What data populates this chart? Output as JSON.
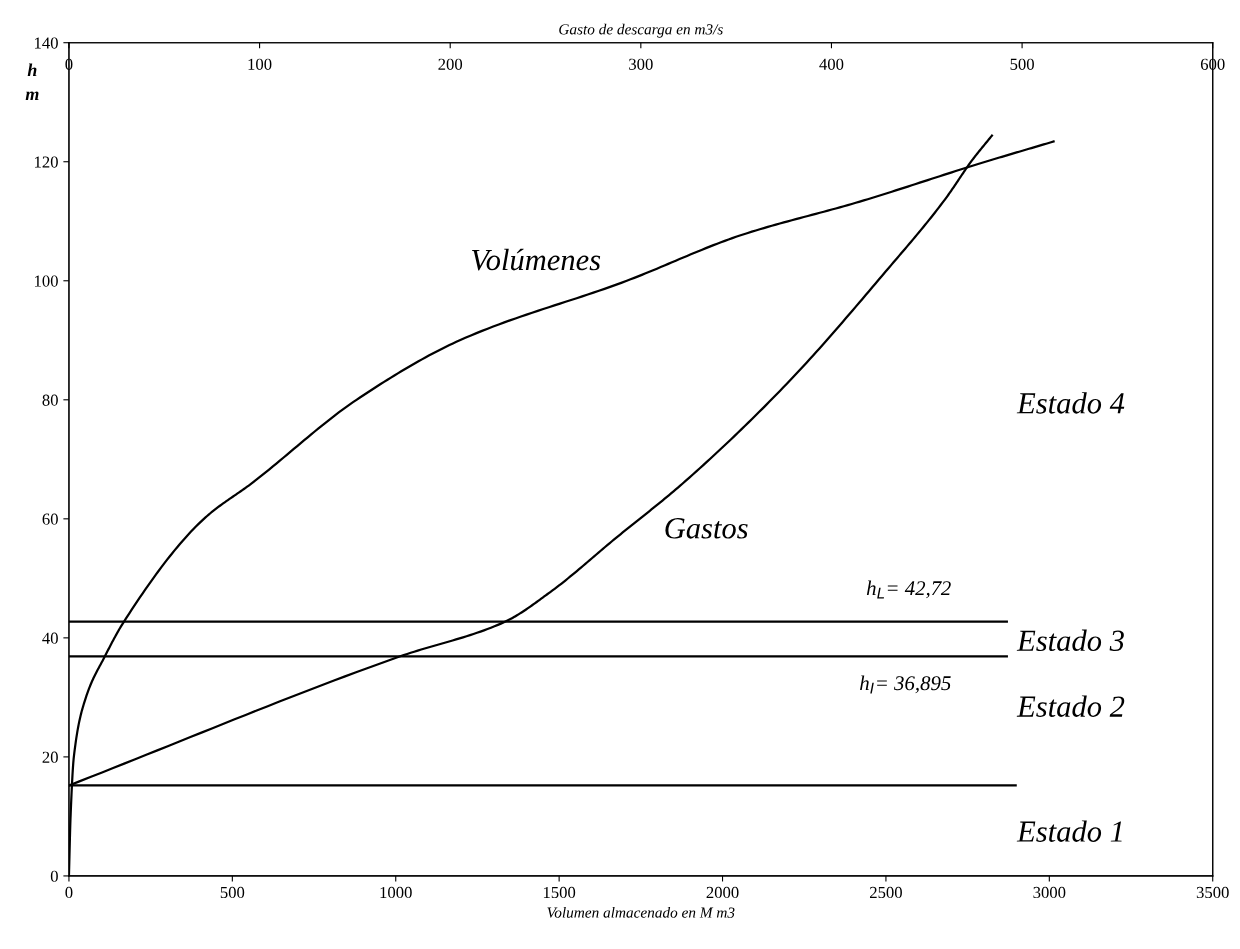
{
  "chart_data": {
    "type": "line",
    "xlabel": "Volumen almacenado en M m3",
    "x2label": "Gasto de descarga en m3/s",
    "ylabel": "h\nm",
    "xlim": [
      0,
      3500
    ],
    "xticks": [
      0,
      500,
      1000,
      1500,
      2000,
      2500,
      3000,
      3500
    ],
    "x2lim": [
      0,
      600
    ],
    "x2ticks": [
      0,
      100,
      200,
      300,
      400,
      500,
      600
    ],
    "ylim": [
      0,
      140
    ],
    "yticks": [
      0,
      20,
      40,
      60,
      80,
      100,
      120,
      140
    ],
    "grid": false,
    "marker": "none",
    "line_style": "solid",
    "series": [
      {
        "color": "#000000",
        "x": [
          0,
          5,
          15,
          52,
          110,
          168,
          413,
          560,
          880,
          1196,
          1707,
          2053,
          2420,
          2787,
          3013
        ],
        "values": [
          0,
          10,
          20,
          30,
          36.9,
          42.7,
          60,
          66,
          80,
          90,
          100,
          107.6,
          113.3,
          119.7,
          123.4
        ]
      },
      {
        "color": "#000000",
        "axis": "x2",
        "x": [
          0,
          173.8,
          228.7,
          252.5,
          287,
          321.8,
          376.6,
          428.3,
          459.4,
          473.9,
          484.2
        ],
        "values": [
          15.2,
          36.9,
          42.7,
          47.7,
          56.8,
          65.9,
          82.7,
          101.5,
          113.6,
          120.3,
          124.4
        ]
      },
      {
        "color": "#000000",
        "x": [
          0,
          2897
        ],
        "values": [
          15.2,
          15.2
        ]
      },
      {
        "color": "#000000",
        "x": [
          0,
          2870
        ],
        "values": [
          36.895,
          36.895
        ]
      },
      {
        "color": "#000000",
        "x": [
          0,
          2870
        ],
        "values": [
          42.72,
          42.72
        ]
      }
    ],
    "annotations": [
      "Volúmenes",
      "Gastos",
      "h$_{L}$= 42,72",
      "h$_{I}$= 36,895",
      "Estado 4",
      "Estado 3",
      "Estado 2",
      "Estado 1"
    ]
  }
}
